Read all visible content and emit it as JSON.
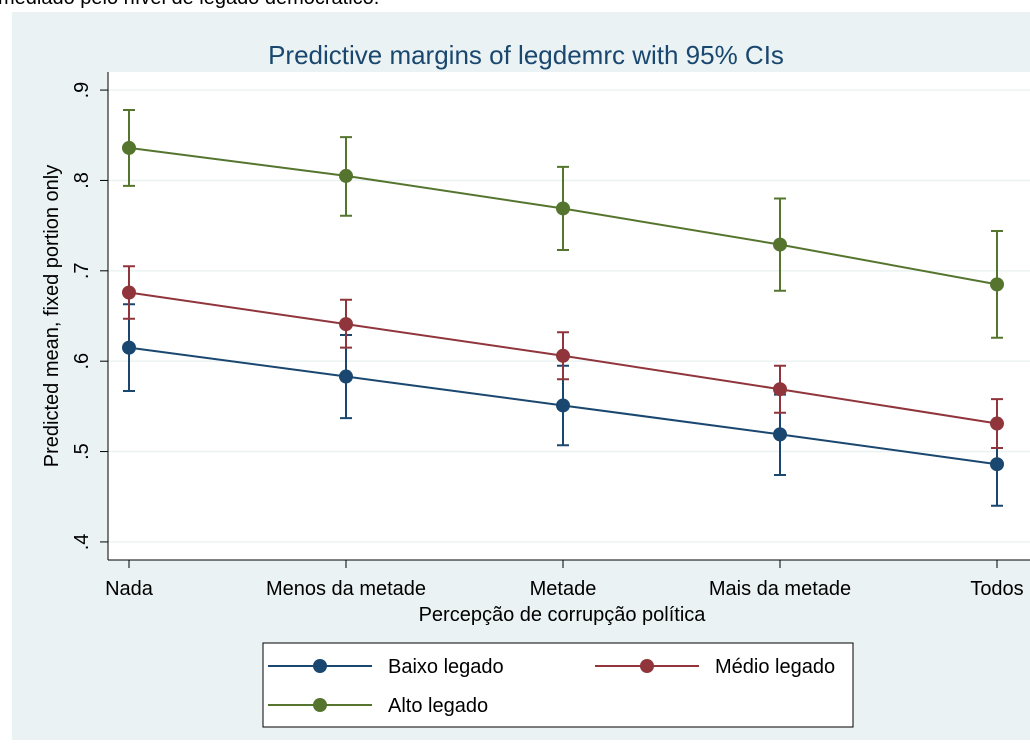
{
  "caption": "mediado pelo nível de legado democrático.",
  "chart_data": {
    "type": "line",
    "title": "Predictive margins of legdemrc with 95% CIs",
    "x_label": "Percepção de corrupção política",
    "y_label": "Predicted mean, fixed portion only",
    "categories": [
      "Nada",
      "Menos da metade",
      "Metade",
      "Mais da metade",
      "Todos"
    ],
    "ylim": [
      0.38,
      0.92
    ],
    "yticks": [
      {
        "value": 0.4,
        "label": ".4"
      },
      {
        "value": 0.5,
        "label": ".5"
      },
      {
        "value": 0.6,
        "label": ".6"
      },
      {
        "value": 0.7,
        "label": ".7"
      },
      {
        "value": 0.8,
        "label": ".8"
      },
      {
        "value": 0.9,
        "label": ".9"
      }
    ],
    "grid": true,
    "legend": "bottom",
    "series": [
      {
        "name": "Baixo legado",
        "color": "#1a476f",
        "values": [
          0.615,
          0.583,
          0.551,
          0.519,
          0.486
        ],
        "ci_low": [
          0.567,
          0.537,
          0.507,
          0.474,
          0.44
        ],
        "ci_high": [
          0.663,
          0.629,
          0.595,
          0.563,
          0.531
        ]
      },
      {
        "name": "Médio legado",
        "color": "#90353b",
        "values": [
          0.676,
          0.641,
          0.606,
          0.569,
          0.531
        ],
        "ci_low": [
          0.647,
          0.615,
          0.58,
          0.543,
          0.504
        ],
        "ci_high": [
          0.705,
          0.668,
          0.632,
          0.595,
          0.558
        ]
      },
      {
        "name": "Alto legado",
        "color": "#55752f",
        "values": [
          0.836,
          0.805,
          0.769,
          0.729,
          0.685
        ],
        "ci_low": [
          0.794,
          0.761,
          0.723,
          0.678,
          0.626
        ],
        "ci_high": [
          0.878,
          0.848,
          0.815,
          0.78,
          0.744
        ]
      }
    ]
  }
}
